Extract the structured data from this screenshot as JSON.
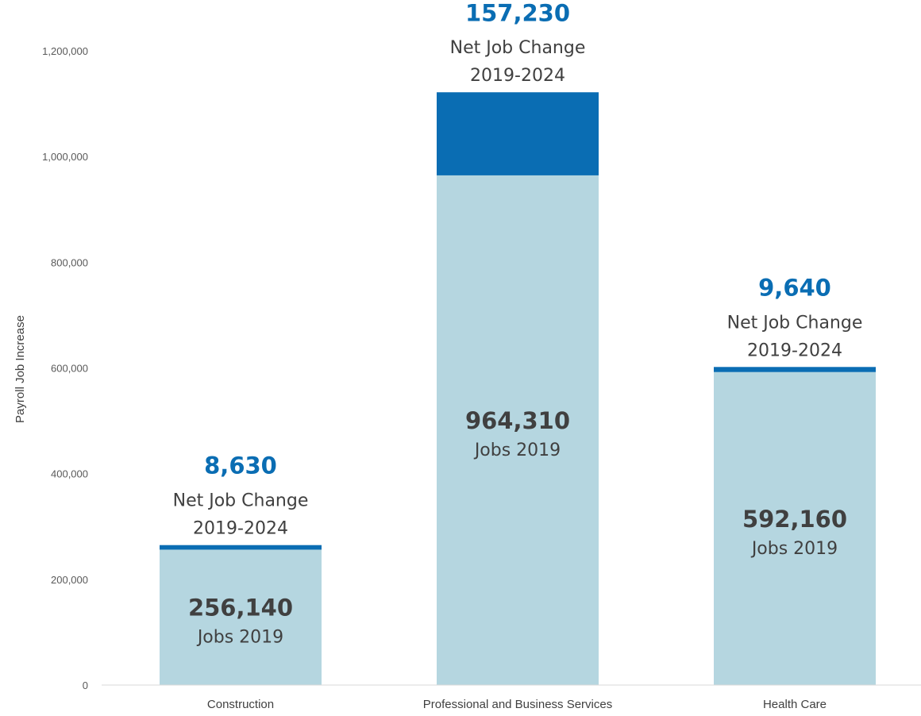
{
  "chart_data": {
    "type": "bar",
    "stacked": true,
    "ylabel": "Payroll Job Increase",
    "ylim": [
      0,
      1200000
    ],
    "yticks": [
      0,
      200000,
      400000,
      600000,
      800000,
      1000000,
      1200000
    ],
    "ytick_labels": [
      "0",
      "200,000",
      "400,000",
      "600,000",
      "800,000",
      "1,000,000",
      "1,200,000"
    ],
    "grid": false,
    "categories": [
      "Construction",
      "Professional and Business Services",
      "Health Care"
    ],
    "series": [
      {
        "values": [
          256140,
          964310,
          592160
        ],
        "color": "#b5d6e0"
      },
      {
        "values": [
          8630,
          157230,
          9640
        ],
        "color": "#0a6db3"
      }
    ],
    "annotations": [
      {
        "base_value": "256,140",
        "base_label": "Jobs 2019",
        "change_value": "8,630",
        "change_label_1": "Net Job Change",
        "change_label_2": "2019-2024"
      },
      {
        "base_value": "964,310",
        "base_label": "Jobs 2019",
        "change_value": "157,230",
        "change_label_1": "Net Job Change",
        "change_label_2": "2019-2024"
      },
      {
        "base_value": "592,160",
        "base_label": "Jobs 2019",
        "change_value": "9,640",
        "change_label_1": "Net Job Change",
        "change_label_2": "2019-2024"
      }
    ]
  }
}
